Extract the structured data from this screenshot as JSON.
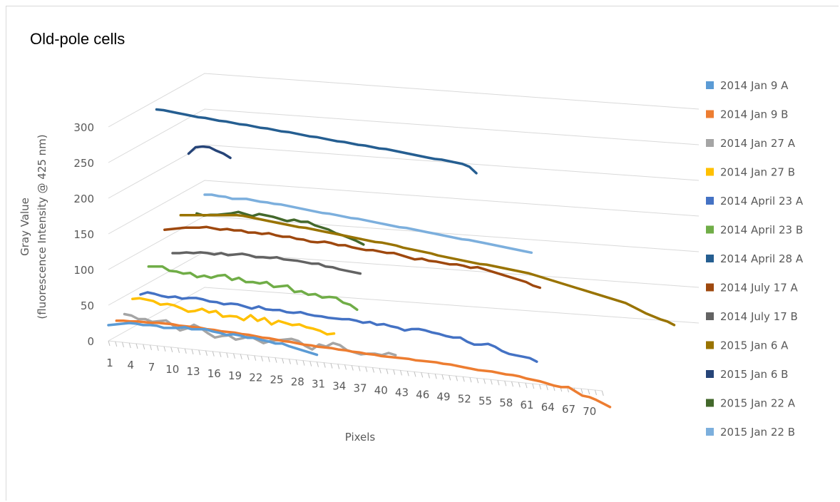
{
  "chart_data": {
    "type": "line",
    "style": "3d-line",
    "title": "Old-pole cells",
    "ylabel_line1": "Gray Value",
    "ylabel_line2": "(fluorescence Intensity @ 425 nm)",
    "xlabel": "Pixels",
    "ylim": [
      0,
      300
    ],
    "y_ticks": [
      0,
      50,
      100,
      150,
      200,
      250,
      300
    ],
    "x_ticks": [
      1,
      4,
      7,
      10,
      13,
      16,
      19,
      22,
      25,
      28,
      31,
      34,
      37,
      40,
      43,
      46,
      49,
      52,
      55,
      58,
      61,
      64,
      67,
      70
    ],
    "x_max": 72,
    "grid": true,
    "legend_position": "right",
    "series": [
      {
        "name": "2014 Jan 9 A",
        "color": "#5b9bd5",
        "values": [
          22,
          24,
          26,
          28,
          28,
          27,
          28,
          28,
          26,
          27,
          28,
          30,
          28,
          29,
          30,
          28,
          27,
          25,
          27,
          26,
          24,
          25,
          23,
          22,
          20,
          21,
          18,
          16,
          14,
          12,
          10
        ]
      },
      {
        "name": "2014 Jan 9 B",
        "color": "#ed7d31",
        "values": [
          22,
          23,
          23,
          24,
          24,
          24,
          25,
          25,
          25,
          24,
          24,
          24,
          24,
          23,
          23,
          22,
          22,
          22,
          21,
          21,
          20,
          19,
          19,
          18,
          17,
          17,
          16,
          15,
          15,
          14,
          14,
          14,
          13,
          13,
          12,
          12,
          11,
          11,
          10,
          10,
          10,
          10,
          10,
          9,
          9,
          9,
          9,
          8,
          8,
          7,
          6,
          5,
          4,
          4,
          4,
          3,
          2,
          2,
          1,
          -1,
          -2,
          -3,
          -5,
          -7,
          -8,
          -7,
          -12,
          -17,
          -18,
          -21,
          -25,
          -29
        ]
      },
      {
        "name": "2014 Jan 27 A",
        "color": "#a5a5a5",
        "values": [
          25,
          24,
          20,
          21,
          18,
          20,
          22,
          16,
          10,
          14,
          20,
          16,
          10,
          5,
          8,
          10,
          5,
          8,
          12,
          8,
          4,
          8,
          10,
          12,
          14,
          12,
          6,
          2,
          10,
          8,
          14,
          12,
          6,
          4,
          2,
          4,
          5,
          4,
          8,
          6
        ]
      },
      {
        "name": "2014 Jan 27 B",
        "color": "#ffc000",
        "values": [
          40,
          42,
          41,
          40,
          36,
          38,
          37,
          34,
          30,
          32,
          36,
          32,
          35,
          28,
          30,
          30,
          26,
          34,
          27,
          32,
          24,
          30,
          28,
          26,
          28,
          25,
          24,
          22,
          18,
          20
        ]
      },
      {
        "name": "2014 April 23 A",
        "color": "#4472c4",
        "values": [
          40,
          44,
          43,
          41,
          40,
          42,
          40,
          42,
          43,
          42,
          40,
          40,
          38,
          40,
          40,
          38,
          36,
          40,
          37,
          37,
          38,
          36,
          36,
          38,
          36,
          35,
          35,
          34,
          34,
          34,
          35,
          34,
          32,
          34,
          31,
          33,
          31,
          30,
          27,
          30,
          31,
          30,
          28,
          27,
          25,
          24,
          25,
          20,
          17,
          18,
          20,
          17,
          12,
          9,
          8,
          7,
          6,
          2
        ]
      },
      {
        "name": "2014 April 23 B",
        "color": "#70ad47",
        "values": [
          73,
          74,
          75,
          70,
          70,
          68,
          70,
          65,
          68,
          66,
          70,
          72,
          66,
          70,
          65,
          66,
          65,
          68,
          62,
          64,
          66,
          58,
          60,
          56,
          58,
          54,
          56,
          56,
          50,
          48,
          42
        ]
      },
      {
        "name": "2014 April 28 A",
        "color": "#255e91",
        "values": [
          287,
          287,
          286,
          285,
          284,
          283,
          282,
          282,
          281,
          280,
          280,
          279,
          278,
          278,
          277,
          276,
          276,
          275,
          274,
          274,
          273,
          272,
          271,
          271,
          270,
          269,
          268,
          268,
          267,
          266,
          266,
          265,
          264,
          264,
          263,
          262,
          261,
          260,
          259,
          258,
          257,
          257,
          256,
          255,
          254,
          251,
          243
        ]
      },
      {
        "name": "2014 July 17 A",
        "color": "#9e480e",
        "values": [
          112,
          114,
          116,
          118,
          119,
          120,
          122,
          121,
          120,
          122,
          121,
          122,
          120,
          121,
          120,
          122,
          120,
          119,
          120,
          118,
          118,
          116,
          116,
          118,
          117,
          115,
          116,
          114,
          113,
          112,
          113,
          112,
          111,
          112,
          110,
          108,
          106,
          108,
          106,
          106,
          105,
          104,
          105,
          104,
          102,
          104,
          102,
          100,
          98,
          96,
          94,
          92,
          90,
          86,
          84
        ]
      },
      {
        "name": "2014 July 17 B",
        "color": "#636363",
        "values": [
          73,
          74,
          76,
          76,
          78,
          78,
          77,
          80,
          78,
          80,
          82,
          81,
          79,
          80,
          80,
          82,
          80,
          80,
          80,
          79,
          78,
          79,
          76,
          76,
          74,
          73,
          72,
          71
        ]
      },
      {
        "name": "2015 Jan 6 A",
        "color": "#997300",
        "values": [
          120,
          121,
          122,
          123,
          124,
          125,
          126,
          127,
          128,
          128,
          127,
          126,
          125,
          124,
          123,
          122,
          121,
          120,
          120,
          119,
          118,
          117,
          116,
          115,
          114,
          113,
          112,
          111,
          110,
          110,
          109,
          108,
          106,
          105,
          104,
          103,
          102,
          100,
          99,
          98,
          97,
          96,
          95,
          94,
          94,
          93,
          92,
          91,
          90,
          89,
          88,
          86,
          84,
          82,
          80,
          78,
          76,
          74,
          72,
          70,
          68,
          66,
          64,
          62,
          60,
          56,
          52,
          48,
          45,
          42,
          40,
          36
        ]
      },
      {
        "name": "2015 Jan 6 B",
        "color": "#264478",
        "values": [
          200,
          210,
          212,
          212,
          208,
          205,
          200
        ]
      },
      {
        "name": "2015 Jan 22 A",
        "color": "#43682b",
        "values": [
          110,
          108,
          110,
          111,
          113,
          115,
          118,
          116,
          114,
          118,
          117,
          116,
          114,
          112,
          115,
          113,
          114,
          110,
          108,
          106,
          102,
          100,
          97,
          94,
          90
        ]
      },
      {
        "name": "2015 Jan 22 B",
        "color": "#7cafdd",
        "values": [
          130,
          131,
          130,
          130,
          128,
          129,
          130,
          129,
          128,
          128,
          127,
          127,
          126,
          125,
          124,
          123,
          122,
          121,
          121,
          120,
          119,
          118,
          118,
          117,
          116,
          115,
          114,
          113,
          112,
          112,
          111,
          110,
          109,
          108,
          107,
          106,
          105,
          104,
          104,
          103,
          102,
          101,
          100,
          99,
          98,
          97,
          96,
          95
        ]
      }
    ]
  }
}
